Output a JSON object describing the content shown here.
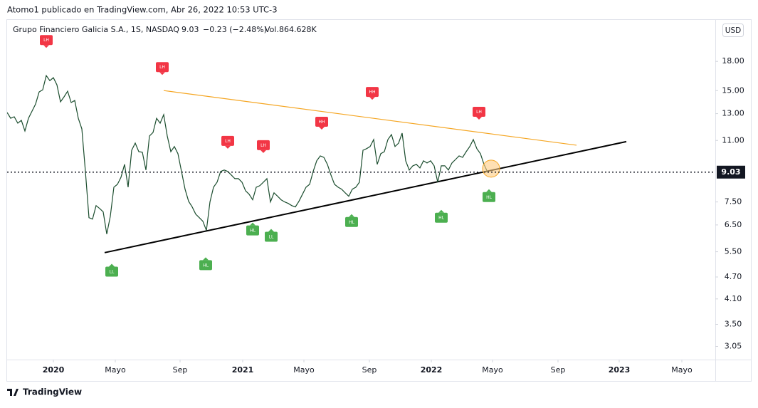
{
  "header": "Atomo1 publicado en TradingView.com, Abr 26, 2022 10:53 UTC-3",
  "footer": "TradingView",
  "chart_data": {
    "type": "line",
    "legend": {
      "symbol": "Grupo Financiero Galicia S.A., 1S, NASDAQ",
      "last": "9.03",
      "change": "−0.23 (−2.48%)",
      "volume": "Vol.864.628K"
    },
    "currency": "USD",
    "log_scale": true,
    "grid": false,
    "xlim": [
      0,
      199
    ],
    "xticks": [
      {
        "value": 13,
        "label": "2020"
      },
      {
        "value": 30.4,
        "label": "Mayo"
      },
      {
        "value": 48.6,
        "label": "Sep"
      },
      {
        "value": 66.2,
        "label": "2021"
      },
      {
        "value": 83.4,
        "label": "Mayo"
      },
      {
        "value": 101.8,
        "label": "Sep"
      },
      {
        "value": 119.2,
        "label": "2022"
      },
      {
        "value": 136.4,
        "label": "Mayo"
      },
      {
        "value": 154.8,
        "label": "Sep"
      },
      {
        "value": 172,
        "label": "2023"
      },
      {
        "value": 189.6,
        "label": "Mayo"
      }
    ],
    "ylim": [
      2.81,
      23.3
    ],
    "yticks": [
      {
        "value": 18,
        "label": "18.00"
      },
      {
        "value": 15,
        "label": "15.00"
      },
      {
        "value": 13,
        "label": "13.00"
      },
      {
        "value": 11,
        "label": "11.00"
      },
      {
        "value": 7.5,
        "label": "7.50"
      },
      {
        "value": 6.5,
        "label": "6.50"
      },
      {
        "value": 5.5,
        "label": "5.50"
      },
      {
        "value": 4.7,
        "label": "4.70"
      },
      {
        "value": 4.1,
        "label": "4.10"
      },
      {
        "value": 3.5,
        "label": "3.50"
      },
      {
        "value": 3.05,
        "label": "3.05"
      }
    ],
    "last_price": 9.03,
    "series": [
      {
        "name": "Grupo Financiero Galicia S.A.",
        "color": "#1b4d2e",
        "values": [
          13.09,
          12.63,
          12.75,
          12.25,
          12.47,
          11.67,
          12.63,
          13.2,
          13.8,
          14.88,
          15.08,
          16.47,
          15.97,
          16.26,
          15.55,
          13.99,
          14.43,
          14.95,
          13.93,
          14.11,
          12.63,
          11.82,
          9.07,
          6.8,
          6.74,
          7.33,
          7.2,
          7.05,
          6.14,
          6.86,
          8.22,
          8.37,
          8.75,
          9.48,
          8.22,
          10.35,
          10.82,
          10.26,
          10.22,
          9.15,
          11.31,
          11.56,
          12.63,
          12.25,
          12.92,
          11.31,
          10.26,
          10.59,
          10.13,
          9.07,
          8.12,
          7.53,
          7.27,
          6.95,
          6.8,
          6.65,
          6.28,
          7.5,
          8.22,
          8.48,
          9.07,
          9.15,
          9.07,
          8.87,
          8.67,
          8.67,
          8.48,
          8.04,
          7.87,
          7.6,
          8.22,
          8.3,
          8.48,
          8.67,
          7.5,
          7.94,
          7.77,
          7.6,
          7.5,
          7.43,
          7.33,
          7.27,
          7.53,
          7.87,
          8.22,
          8.37,
          9.07,
          9.69,
          9.99,
          9.9,
          9.48,
          8.87,
          8.37,
          8.22,
          8.12,
          7.94,
          7.77,
          8.12,
          8.22,
          8.48,
          10.35,
          10.45,
          10.59,
          11.06,
          9.48,
          10.13,
          10.26,
          11.06,
          11.41,
          10.59,
          10.82,
          11.51,
          9.69,
          9.15,
          9.39,
          9.48,
          9.27,
          9.69,
          9.56,
          9.69,
          9.39,
          8.48,
          9.39,
          9.39,
          9.15,
          9.56,
          9.77,
          9.99,
          9.9,
          10.26,
          10.59,
          11.06,
          10.45,
          10.13,
          9.48,
          9.03
        ]
      }
    ],
    "trendlines": [
      {
        "x": [
          27.4,
          174
        ],
        "y": [
          5.47,
          10.92
        ],
        "color": "#000000"
      },
      {
        "x": [
          44,
          160
        ],
        "y": [
          15.01,
          10.68
        ],
        "color": "#f5a623"
      }
    ],
    "highlight": {
      "x": 136,
      "y": 9.23,
      "color": "#ffcc80"
    },
    "annotations": [
      {
        "label": "LH",
        "x": 11,
        "y": 20.56,
        "color": "#f23645"
      },
      {
        "label": "LH",
        "x": 43.6,
        "y": 17.37,
        "color": "#f23645"
      },
      {
        "label": "LH",
        "x": 62,
        "y": 10.97,
        "color": "#f23645"
      },
      {
        "label": "LH",
        "x": 72,
        "y": 10.68,
        "color": "#f23645"
      },
      {
        "label": "HH",
        "x": 88.4,
        "y": 12.36,
        "color": "#f23645"
      },
      {
        "label": "HH",
        "x": 102.6,
        "y": 14.88,
        "color": "#f23645"
      },
      {
        "label": "LH",
        "x": 132.6,
        "y": 13.15,
        "color": "#f23645"
      },
      {
        "label": "LL",
        "x": 29.4,
        "y": 4.86,
        "color": "#4caf50"
      },
      {
        "label": "HL",
        "x": 55.8,
        "y": 5.06,
        "color": "#4caf50"
      },
      {
        "label": "HL",
        "x": 69,
        "y": 6.28,
        "color": "#4caf50"
      },
      {
        "label": "LL",
        "x": 74.2,
        "y": 6.04,
        "color": "#4caf50"
      },
      {
        "label": "HL",
        "x": 96.8,
        "y": 6.62,
        "color": "#4caf50"
      },
      {
        "label": "HL",
        "x": 122,
        "y": 6.8,
        "color": "#4caf50"
      },
      {
        "label": "HL",
        "x": 135.4,
        "y": 7.73,
        "color": "#4caf50"
      }
    ]
  }
}
